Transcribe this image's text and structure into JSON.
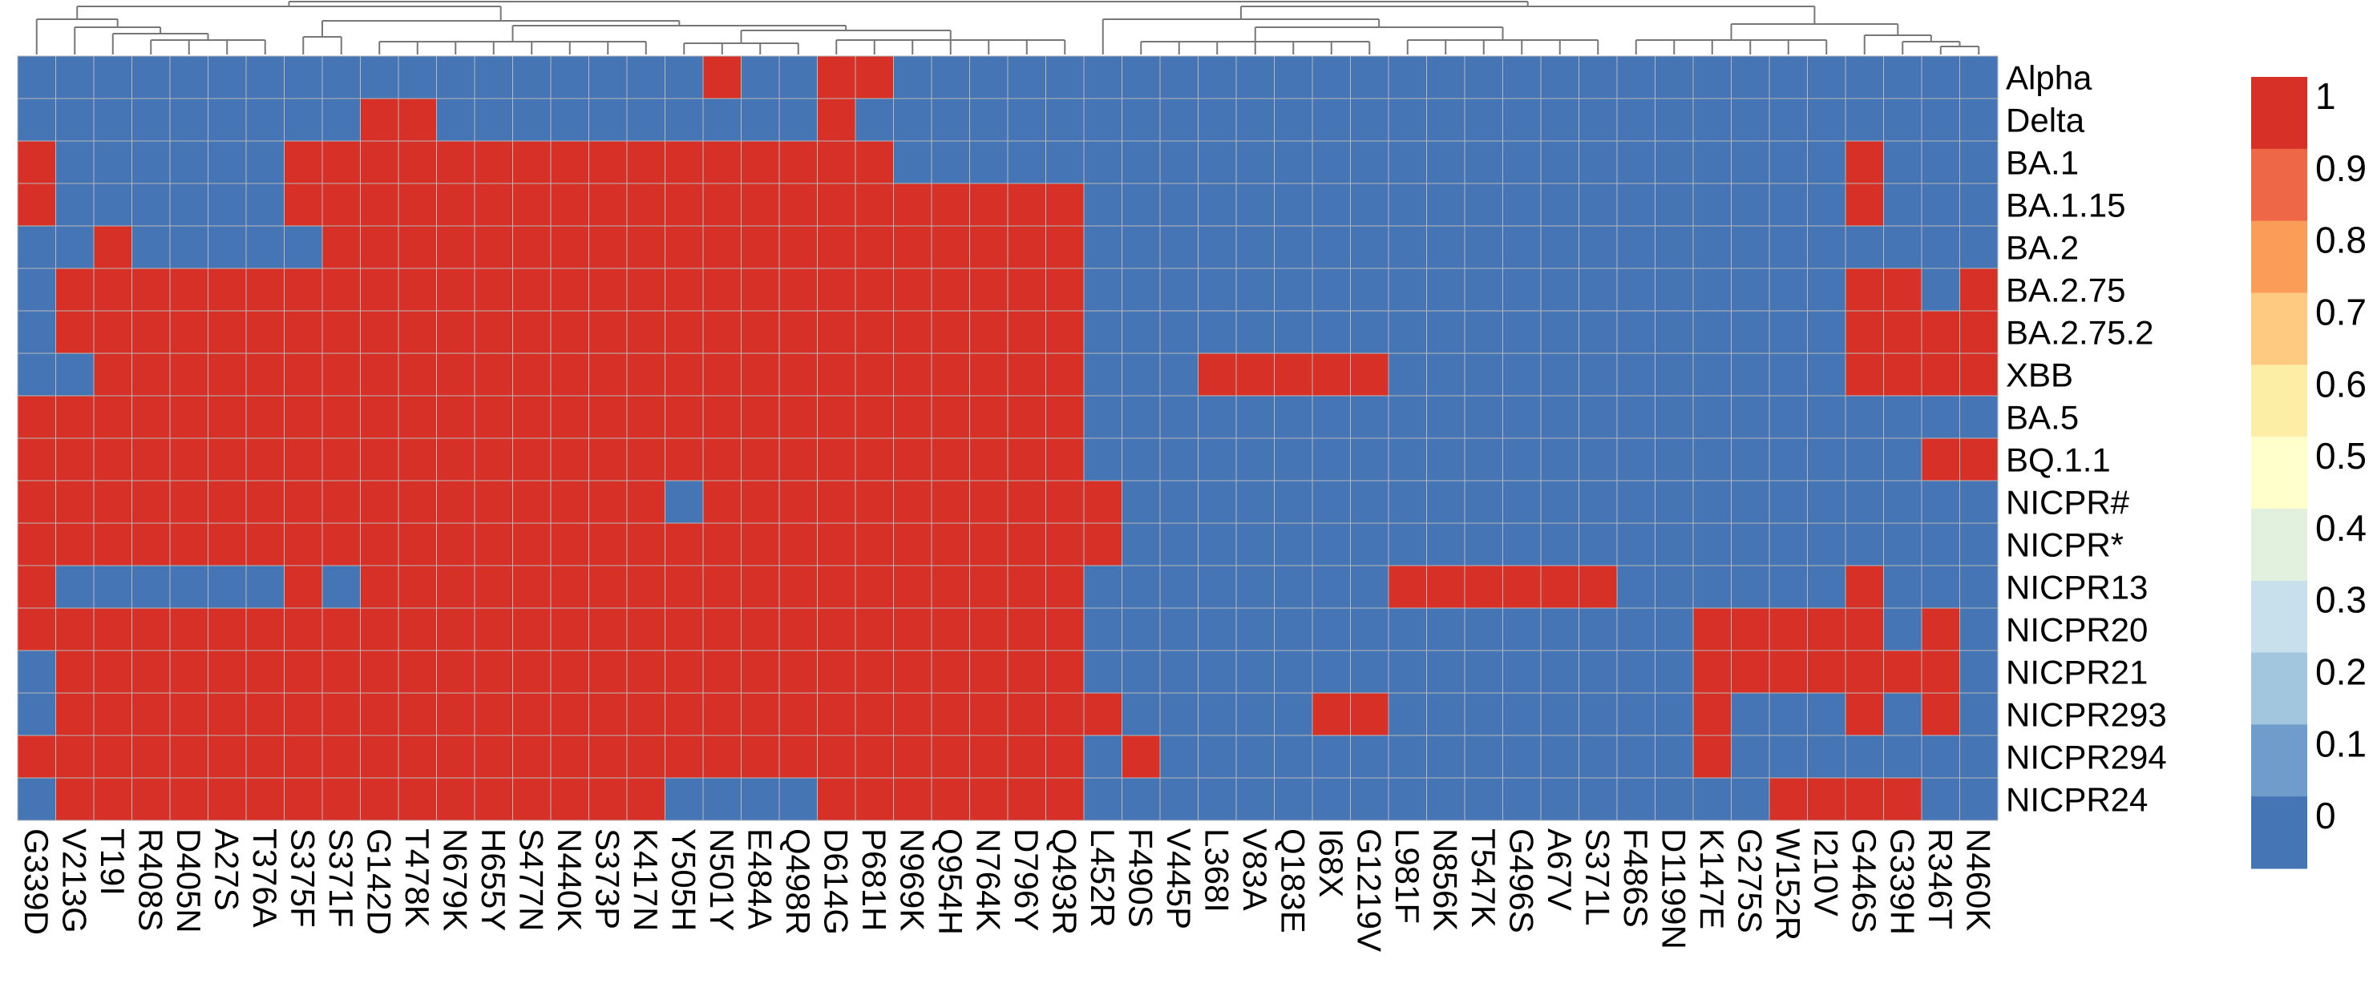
{
  "chart_data": {
    "type": "heatmap",
    "columns": [
      "G339D",
      "V213G",
      "T19I",
      "R408S",
      "D405N",
      "A27S",
      "T376A",
      "S375F",
      "S371F",
      "G142D",
      "T478K",
      "N679K",
      "H655Y",
      "S477N",
      "N440K",
      "S373P",
      "K417N",
      "Y505H",
      "N501Y",
      "E484A",
      "Q498R",
      "D614G",
      "P681H",
      "N969K",
      "Q954H",
      "N764K",
      "D796Y",
      "Q493R",
      "L452R",
      "F490S",
      "V445P",
      "L368I",
      "V83A",
      "Q183E",
      "I68X",
      "G1219V",
      "L981F",
      "N856K",
      "T547K",
      "G496S",
      "A67V",
      "S371L",
      "F486S",
      "D1199N",
      "K147E",
      "G275S",
      "W152R",
      "I210V",
      "G446S",
      "G339H",
      "R346T",
      "N460K"
    ],
    "rows": [
      "Alpha",
      "Delta",
      "BA.1",
      "BA.1.15",
      "BA.2",
      "BA.2.75",
      "BA.2.75.2",
      "XBB",
      "BA.5",
      "BQ.1.1",
      "NICPR#",
      "NICPR*",
      "NICPR13",
      "NICPR20",
      "NICPR21",
      "NICPR293",
      "NICPR294",
      "NICPR24"
    ],
    "values": [
      "0000000000000000001001100000000000000000000000000000",
      "0000000001100000000001000000000000000000000000000000",
      "1000000111111111111111100000000000000000000000001000",
      "1000000111111111111111111111000000000000000000001000",
      "0010000011111111111111111111000000000000000000000000",
      "0111111111111111111111111111000000000000000000001101",
      "0111111111111111111111111111000000000000000000001111",
      "0011111111111111111111111111000111110000000000001111",
      "1111111111111111111111111111000000000000000000000000",
      "1111111111111111111111111111000000000000000000000011",
      "1111111111111111101111111111100000000000000000000000",
      "1111111111111111111111111111100000000000000000000000",
      "1000000101111111111111111111000000001111110000001000",
      "1111111111111111111111111111000000000000000011111010",
      "0111111111111111111111111111000000000000000011111110",
      "0111111111111111111111111111100000110000000010001010",
      "1111111111111111111111111111010000000000000010000000",
      "0111111111111111100001111111000000000000000000111100"
    ],
    "colorbar": {
      "ticks": [
        "1",
        "0.9",
        "0.8",
        "0.7",
        "0.6",
        "0.5",
        "0.4",
        "0.3",
        "0.2",
        "0.1",
        "0"
      ],
      "colors": [
        "#d73027",
        "#ee6746",
        "#fb9d59",
        "#fec980",
        "#fdeea5",
        "#ffffcc",
        "#e2f0de",
        "#c8e0ec",
        "#a1c6de",
        "#6f9ccb",
        "#4575b4"
      ]
    },
    "xlabel": "",
    "ylabel": "",
    "legend_position": "right",
    "grid": true
  }
}
